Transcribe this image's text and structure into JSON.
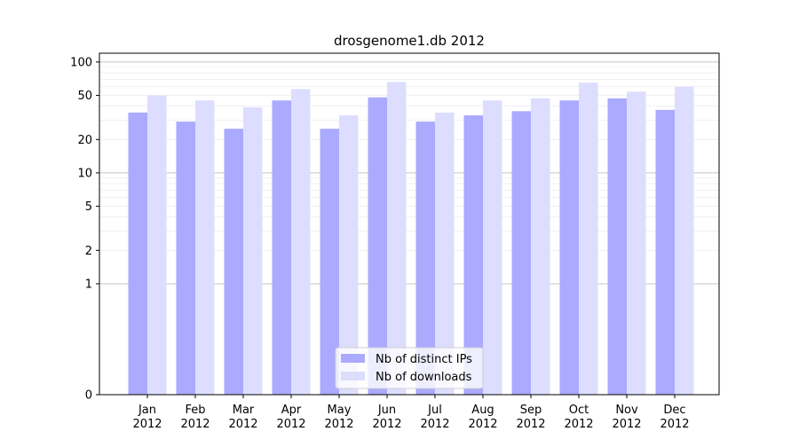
{
  "chart_data": {
    "type": "bar",
    "title": "drosgenome1.db 2012",
    "xlabel": "",
    "ylabel": "",
    "yscale": "symlog",
    "ylim": [
      0,
      120
    ],
    "yticks": [
      0,
      1,
      2,
      5,
      10,
      20,
      50,
      100
    ],
    "grid": true,
    "legend_position": "bottom-center",
    "categories": [
      [
        "Jan",
        "2012"
      ],
      [
        "Feb",
        "2012"
      ],
      [
        "Mar",
        "2012"
      ],
      [
        "Apr",
        "2012"
      ],
      [
        "May",
        "2012"
      ],
      [
        "Jun",
        "2012"
      ],
      [
        "Jul",
        "2012"
      ],
      [
        "Aug",
        "2012"
      ],
      [
        "Sep",
        "2012"
      ],
      [
        "Oct",
        "2012"
      ],
      [
        "Nov",
        "2012"
      ],
      [
        "Dec",
        "2012"
      ]
    ],
    "series": [
      {
        "name": "Nb of distinct IPs",
        "color": "#aaaaff",
        "values": [
          35,
          29,
          25,
          45,
          25,
          48,
          29,
          33,
          36,
          45,
          47,
          37
        ]
      },
      {
        "name": "Nb of downloads",
        "color": "#ddddff",
        "values": [
          50,
          45,
          39,
          57,
          33,
          66,
          35,
          45,
          47,
          65,
          54,
          60
        ]
      }
    ]
  }
}
